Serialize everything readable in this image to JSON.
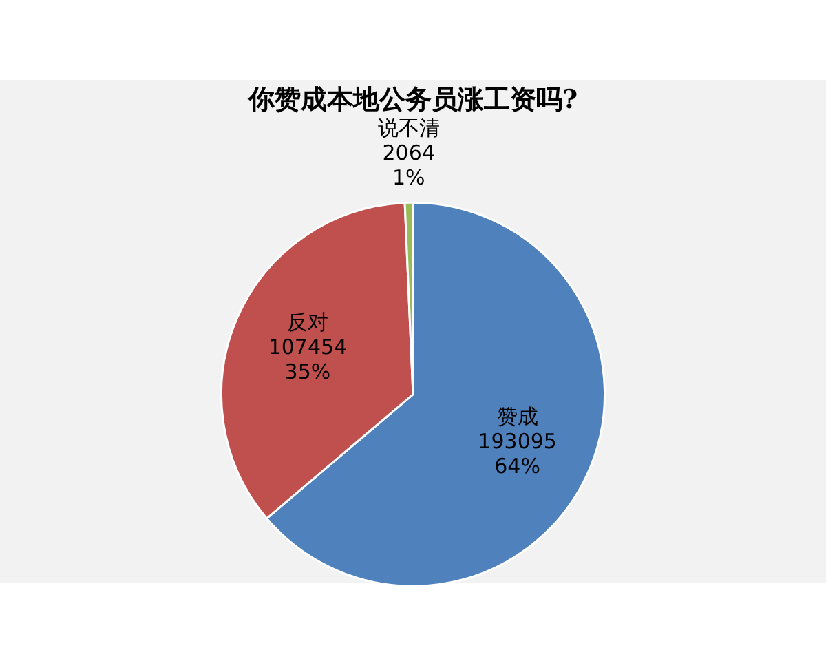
{
  "chart_data": {
    "type": "pie",
    "title": "你赞成本地公务员涨工资吗?",
    "categories": [
      "赞成",
      "反对",
      "说不清"
    ],
    "values": [
      193095,
      107454,
      2064
    ],
    "colors": [
      "#4f81bd",
      "#c0504d",
      "#9bbb59"
    ],
    "value_labels": [
      "193095\n64%",
      "107454\n35%",
      "2064\n1%"
    ],
    "legend": false
  }
}
